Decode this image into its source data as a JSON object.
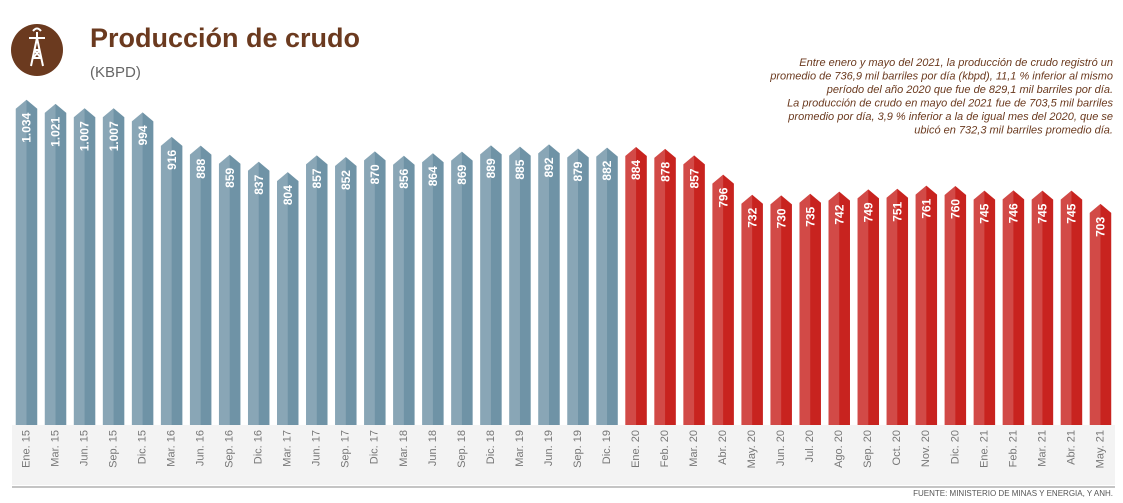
{
  "chart_data": {
    "type": "bar",
    "title": "Producción de crudo",
    "subtitle": "(KBPD)",
    "annotation": [
      "Entre enero y mayo del 2021, la producción de crudo registró un",
      "promedio de 736,9 mil barriles por día (kbpd), 11,1 % inferior al mismo",
      "período del año 2020 que fue de 829,1 mil barriles por día.",
      "La producción de crudo en mayo del 2021 fue de 703,5 mil barriles",
      "promedio por día, 3,9 % inferior a la de igual mes del 2020, que se",
      "ubicó en 732,3 mil barriles promedio día."
    ],
    "source": "FUENTE: MINISTERIO DE MINAS Y ENERGIA, Y ANH.",
    "categories": [
      "Ene. 15",
      "Mar. 15",
      "Jun. 15",
      "Sep. 15",
      "Dic. 15",
      "Mar. 16",
      "Jun. 16",
      "Sep. 16",
      "Dic. 16",
      "Mar. 17",
      "Jun. 17",
      "Sep. 17",
      "Dic. 17",
      "Mar. 18",
      "Jun. 18",
      "Sep. 18",
      "Dic. 18",
      "Mar. 19",
      "Jun. 19",
      "Sep. 19",
      "Dic. 19",
      "Ene. 20",
      "Feb. 20",
      "Mar. 20",
      "Abr. 20",
      "May. 20",
      "Jun. 20",
      "Jul. 20",
      "Ago. 20",
      "Sep. 20",
      "Oct. 20",
      "Nov. 20",
      "Dic. 20",
      "Ene. 21",
      "Feb. 21",
      "Mar. 21",
      "Abr. 21",
      "May. 21"
    ],
    "values": [
      1034,
      1021,
      1007,
      1007,
      994,
      916,
      888,
      859,
      837,
      804,
      857,
      852,
      870,
      856,
      864,
      869,
      889,
      885,
      892,
      879,
      882,
      884,
      878,
      857,
      796,
      732,
      730,
      735,
      742,
      749,
      751,
      761,
      760,
      745,
      746,
      745,
      745,
      703
    ],
    "value_labels": [
      "1.034",
      "1.021",
      "1.007",
      "1.007",
      "994",
      "916",
      "888",
      "859",
      "837",
      "804",
      "857",
      "852",
      "870",
      "856",
      "864",
      "869",
      "889",
      "885",
      "892",
      "879",
      "882",
      "884",
      "878",
      "857",
      "796",
      "732",
      "730",
      "735",
      "742",
      "749",
      "751",
      "761",
      "760",
      "745",
      "746",
      "745",
      "745",
      "703"
    ],
    "colors": [
      "#6f93a6",
      "#6f93a6",
      "#6f93a6",
      "#6f93a6",
      "#6f93a6",
      "#6f93a6",
      "#6f93a6",
      "#6f93a6",
      "#6f93a6",
      "#6f93a6",
      "#6f93a6",
      "#6f93a6",
      "#6f93a6",
      "#6f93a6",
      "#6f93a6",
      "#6f93a6",
      "#6f93a6",
      "#6f93a6",
      "#6f93a6",
      "#6f93a6",
      "#6f93a6",
      "#c8231f",
      "#c8231f",
      "#c8231f",
      "#c8231f",
      "#c8231f",
      "#c8231f",
      "#c8231f",
      "#c8231f",
      "#c8231f",
      "#c8231f",
      "#c8231f",
      "#c8231f",
      "#c8231f",
      "#c8231f",
      "#c8231f",
      "#c8231f",
      "#c8231f"
    ],
    "ylim": [
      0,
      1100
    ]
  }
}
